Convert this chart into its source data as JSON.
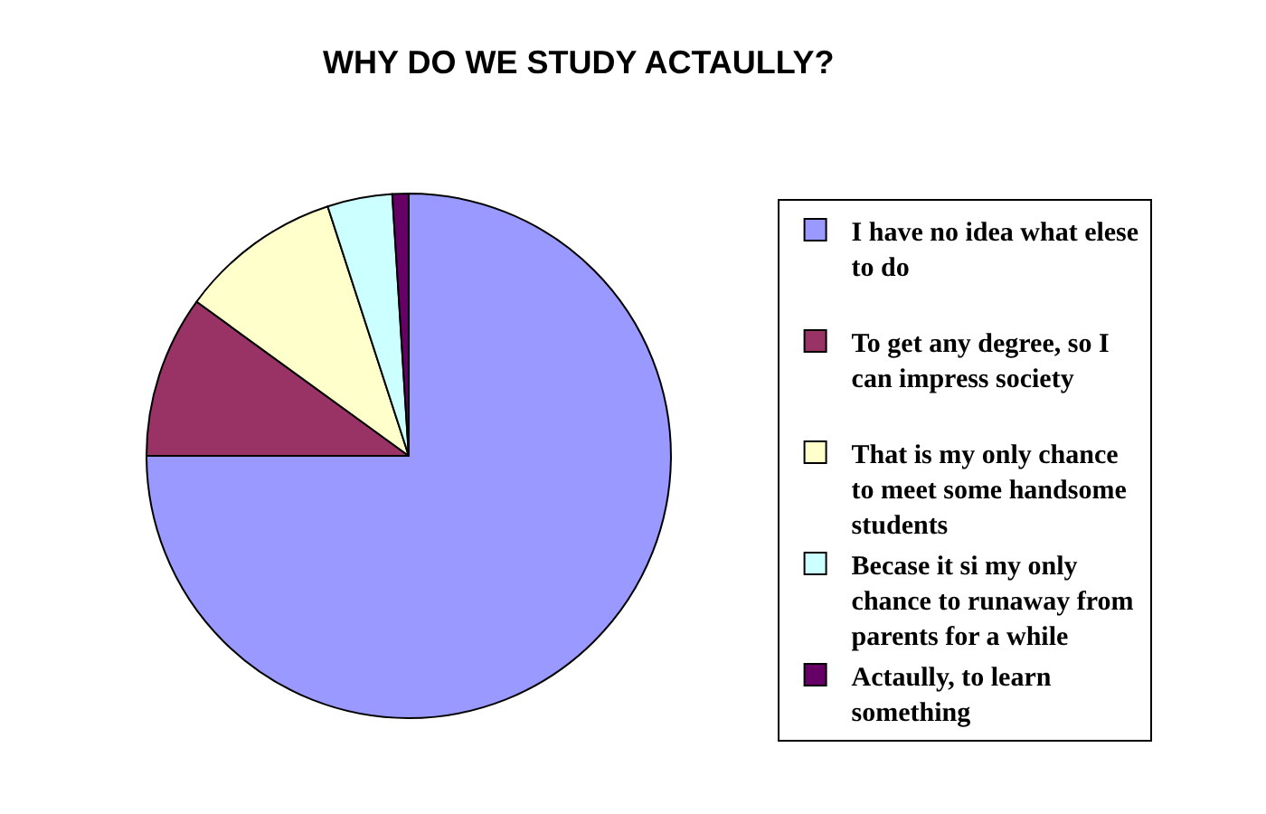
{
  "chart_data": {
    "type": "pie",
    "title": "WHY DO WE STUDY ACTAULLY?",
    "categories": [
      "I have no idea what elese to do",
      "To get any degree, so I can impress society",
      "That is my only chance to meet some handsome students",
      "Becase it si my only chance to runaway from parents for a while",
      "Actaully, to learn something"
    ],
    "values": [
      75,
      10,
      10,
      4,
      1
    ],
    "colors": [
      "#9999ff",
      "#993366",
      "#ffffcc",
      "#ccffff",
      "#660066"
    ],
    "legend": "right"
  }
}
